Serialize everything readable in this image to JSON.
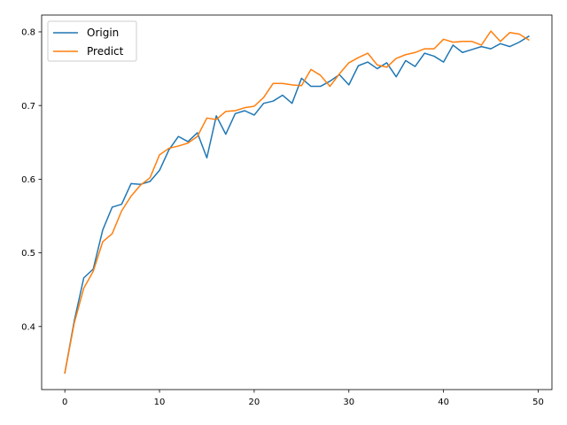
{
  "chart_data": {
    "type": "line",
    "title": "",
    "xlabel": "",
    "ylabel": "",
    "xlim": [
      -2.45,
      51.45
    ],
    "ylim": [
      0.3144,
      0.8228
    ],
    "xticks": [
      0,
      10,
      20,
      30,
      40,
      50
    ],
    "yticks": [
      0.4,
      0.5,
      0.6,
      0.7,
      0.8
    ],
    "xtick_labels": [
      "0",
      "10",
      "20",
      "30",
      "40",
      "50"
    ],
    "ytick_labels": [
      "0.4",
      "0.5",
      "0.6",
      "0.7",
      "0.8"
    ],
    "grid": false,
    "legend_position": "top-left",
    "x": [
      0,
      1,
      2,
      3,
      4,
      5,
      6,
      7,
      8,
      9,
      10,
      11,
      12,
      13,
      14,
      15,
      16,
      17,
      18,
      19,
      20,
      21,
      22,
      23,
      24,
      25,
      26,
      27,
      28,
      29,
      30,
      31,
      32,
      33,
      34,
      35,
      36,
      37,
      38,
      39,
      40,
      41,
      42,
      43,
      44,
      45,
      46,
      47,
      48,
      49
    ],
    "series": [
      {
        "name": "Origin",
        "color": "#1f77b4",
        "values": [
          0.337,
          0.408,
          0.466,
          0.478,
          0.531,
          0.562,
          0.566,
          0.594,
          0.593,
          0.597,
          0.612,
          0.64,
          0.658,
          0.651,
          0.663,
          0.629,
          0.686,
          0.661,
          0.689,
          0.693,
          0.687,
          0.703,
          0.706,
          0.714,
          0.703,
          0.737,
          0.726,
          0.726,
          0.733,
          0.742,
          0.728,
          0.754,
          0.759,
          0.75,
          0.758,
          0.739,
          0.761,
          0.753,
          0.771,
          0.767,
          0.759,
          0.782,
          0.772,
          0.776,
          0.78,
          0.777,
          0.784,
          0.78,
          0.786,
          0.794
        ]
      },
      {
        "name": "Predict",
        "color": "#ff7f0e",
        "values": [
          0.337,
          0.405,
          0.452,
          0.475,
          0.515,
          0.526,
          0.557,
          0.577,
          0.592,
          0.602,
          0.633,
          0.642,
          0.645,
          0.649,
          0.658,
          0.683,
          0.681,
          0.692,
          0.693,
          0.697,
          0.699,
          0.711,
          0.73,
          0.73,
          0.728,
          0.727,
          0.749,
          0.741,
          0.726,
          0.743,
          0.758,
          0.765,
          0.771,
          0.755,
          0.752,
          0.764,
          0.769,
          0.772,
          0.777,
          0.777,
          0.79,
          0.786,
          0.787,
          0.787,
          0.782,
          0.801,
          0.787,
          0.799,
          0.797,
          0.789
        ]
      }
    ]
  }
}
